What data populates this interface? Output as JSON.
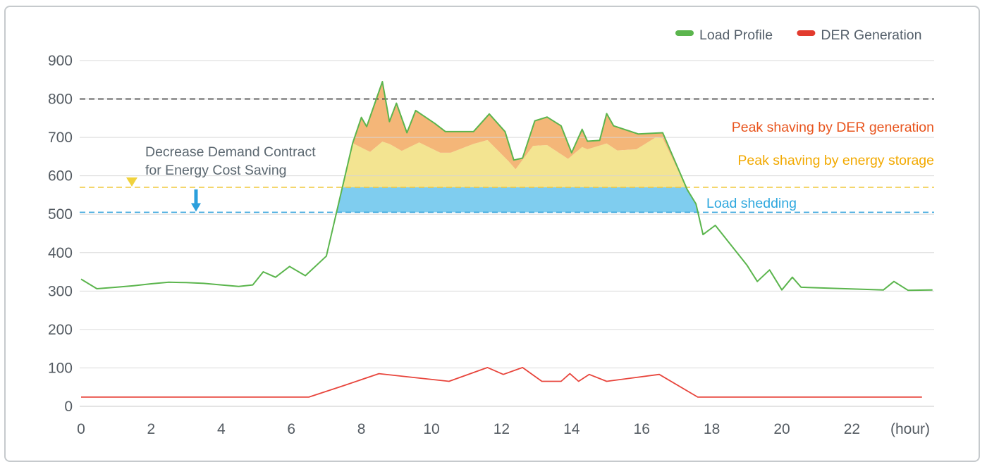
{
  "chart_data": {
    "type": "area",
    "title": "",
    "xlabel": "(hour)",
    "ylabel": "",
    "xlim": [
      0,
      24.3
    ],
    "ylim": [
      0,
      900
    ],
    "grid": "horizontal",
    "x_ticks": [
      0,
      2,
      4,
      6,
      8,
      10,
      12,
      14,
      16,
      18,
      20,
      22
    ],
    "y_ticks": [
      0,
      100,
      200,
      300,
      400,
      500,
      600,
      700,
      800,
      900
    ],
    "legend_position": "top-right",
    "legend": [
      {
        "name": "Load Profile",
        "color": "#5bb54d"
      },
      {
        "name": "DER Generation",
        "color": "#e23b2e"
      }
    ],
    "series": [
      {
        "name": "Load Profile",
        "type": "line",
        "color": "#5bb54d",
        "points": [
          [
            0,
            331
          ],
          [
            0.45,
            306
          ],
          [
            1,
            310
          ],
          [
            1.5,
            314
          ],
          [
            2,
            319
          ],
          [
            2.5,
            323
          ],
          [
            3,
            322
          ],
          [
            3.5,
            320
          ],
          [
            4,
            316
          ],
          [
            4.5,
            312
          ],
          [
            4.9,
            316
          ],
          [
            5.2,
            350
          ],
          [
            5.55,
            336
          ],
          [
            5.95,
            364
          ],
          [
            6.4,
            340
          ],
          [
            7,
            391
          ],
          [
            7.75,
            685
          ],
          [
            8,
            752
          ],
          [
            8.15,
            728
          ],
          [
            8.6,
            845
          ],
          [
            8.8,
            741
          ],
          [
            9,
            789
          ],
          [
            9.3,
            712
          ],
          [
            9.55,
            770
          ],
          [
            10.1,
            736
          ],
          [
            10.4,
            715
          ],
          [
            11.2,
            715
          ],
          [
            11.65,
            761
          ],
          [
            12.1,
            715
          ],
          [
            12.35,
            641
          ],
          [
            12.6,
            646
          ],
          [
            12.95,
            743
          ],
          [
            13.3,
            753
          ],
          [
            13.7,
            730
          ],
          [
            14,
            660
          ],
          [
            14.3,
            721
          ],
          [
            14.45,
            690
          ],
          [
            14.8,
            692
          ],
          [
            15,
            762
          ],
          [
            15.2,
            730
          ],
          [
            15.9,
            709
          ],
          [
            16.6,
            712
          ],
          [
            17.3,
            564
          ],
          [
            17.55,
            527
          ],
          [
            17.75,
            447
          ],
          [
            18.1,
            471
          ],
          [
            19,
            368
          ],
          [
            19.3,
            325
          ],
          [
            19.65,
            355
          ],
          [
            20,
            303
          ],
          [
            20.3,
            336
          ],
          [
            20.55,
            310
          ],
          [
            21.5,
            307
          ],
          [
            22.9,
            303
          ],
          [
            23.2,
            325
          ],
          [
            23.6,
            302
          ],
          [
            24.3,
            303
          ]
        ]
      },
      {
        "name": "DER Generation",
        "type": "line",
        "color": "#e8453c",
        "points": [
          [
            0,
            24
          ],
          [
            6.5,
            24
          ],
          [
            7.5,
            54
          ],
          [
            8.5,
            85
          ],
          [
            9.6,
            74
          ],
          [
            10.5,
            65
          ],
          [
            11.6,
            101
          ],
          [
            12.05,
            83
          ],
          [
            12.6,
            101
          ],
          [
            13.15,
            65
          ],
          [
            13.7,
            65
          ],
          [
            13.95,
            85
          ],
          [
            14.2,
            65
          ],
          [
            14.5,
            83
          ],
          [
            15,
            65
          ],
          [
            16.5,
            83
          ],
          [
            17.6,
            24
          ],
          [
            24,
            24
          ]
        ]
      },
      {
        "name": "Load after DER peak shaving (lower bound of orange band)",
        "type": "boundary",
        "color": "none",
        "points": [
          [
            7.75,
            685
          ],
          [
            8.25,
            662
          ],
          [
            8.6,
            689
          ],
          [
            8.8,
            683
          ],
          [
            9.15,
            665
          ],
          [
            9.65,
            687
          ],
          [
            10.25,
            660
          ],
          [
            10.55,
            660
          ],
          [
            11.2,
            683
          ],
          [
            11.6,
            693
          ],
          [
            12.2,
            638
          ],
          [
            12.4,
            617
          ],
          [
            12.9,
            678
          ],
          [
            13.3,
            680
          ],
          [
            13.9,
            644
          ],
          [
            14.3,
            675
          ],
          [
            14.45,
            669
          ],
          [
            15,
            684
          ],
          [
            15.3,
            666
          ],
          [
            15.85,
            669
          ],
          [
            16.4,
            700
          ],
          [
            16.6,
            698
          ],
          [
            17.3,
            564
          ]
        ]
      }
    ],
    "reference_lines": [
      {
        "name": "demand-contract-level",
        "value": 800,
        "color": "#3a3a3a",
        "style": "dashed"
      },
      {
        "name": "energy-storage-shaving-level",
        "value": 570,
        "color": "#f0c83c",
        "style": "dashed"
      },
      {
        "name": "load-shedding-level",
        "value": 505,
        "color": "#35a3dc",
        "style": "dashed"
      }
    ],
    "bands": [
      {
        "name": "peak-shaving-der-fill",
        "color": "#f4b678",
        "between": "load and boundary"
      },
      {
        "name": "peak-shaving-storage-fill",
        "color": "#f3e491",
        "between": "boundary and 570"
      },
      {
        "name": "load-shedding-fill",
        "color": "#7fcdef",
        "between": "570 and 505"
      }
    ],
    "annotations": {
      "decrease_text": {
        "line1": "Decrease Demand Contract",
        "line2": "for Energy Cost Saving",
        "color": "#5b6770"
      },
      "label_der": {
        "text": "Peak shaving by DER generation",
        "color": "#e8541d"
      },
      "label_storage": {
        "text": "Peak shaving by energy storage",
        "color": "#f2a900"
      },
      "label_shedding": {
        "text": "Load shedding",
        "color": "#2da7de"
      },
      "arrow_demand": {
        "from": 800,
        "to": 570,
        "color_top": "#e87e12",
        "color_bottom": "#f0d23c"
      },
      "arrow_shedding": {
        "from": 570,
        "to": 505,
        "color": "#2b9fdc"
      }
    },
    "axis_text_color": "#545b62",
    "grid_color": "#d6d6d6"
  }
}
